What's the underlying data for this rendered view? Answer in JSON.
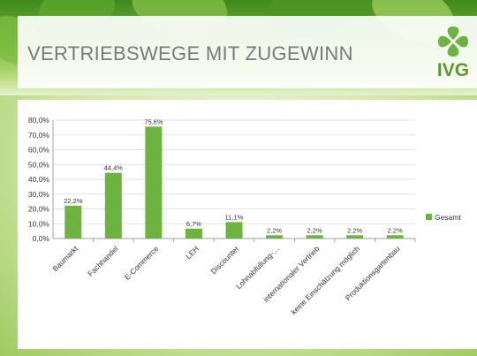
{
  "slide": {
    "title": "VERTRIEBSWEGE MIT ZUGEWINN",
    "logo_text": "IVG",
    "brand_color": "#6db33f"
  },
  "chart_data": {
    "type": "bar",
    "categories": [
      "Baumarkt",
      "Fachhandel",
      "E-Commerce",
      "LEH",
      "Discounter",
      "Lohnabfüllung-…",
      "internationaler Vertrieb",
      "keine Einschätzung möglich",
      "Produktionsgartenbau"
    ],
    "series": [
      {
        "name": "Gesamt",
        "values": [
          22.2,
          44.4,
          75.6,
          6.7,
          11.1,
          2.2,
          2.2,
          2.2,
          2.2
        ],
        "color": "#6db33f"
      }
    ],
    "data_labels": [
      "22,2%",
      "44,4%",
      "75,6%",
      "6,7%",
      "11,1%",
      "2,2%",
      "2,2%",
      "2,2%",
      "2,2%"
    ],
    "y_ticks": [
      "0,0%",
      "10,0%",
      "20,0%",
      "30,0%",
      "40,0%",
      "50,0%",
      "60,0%",
      "70,0%",
      "80,0%"
    ],
    "ylim": [
      0,
      80
    ],
    "grid": true,
    "legend_position": "right",
    "xlabel": "",
    "ylabel": ""
  }
}
